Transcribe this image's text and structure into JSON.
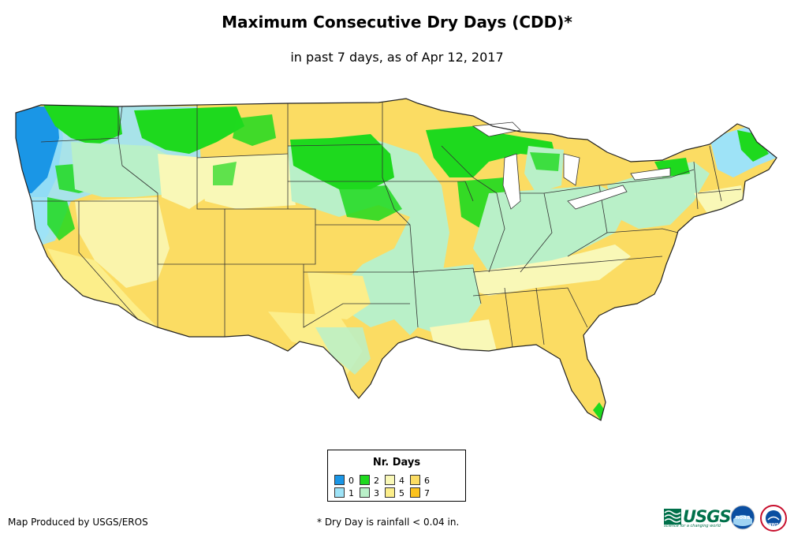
{
  "header": {
    "title": "Maximum Consecutive Dry Days (CDD)*",
    "subtitle": "in past 7 days, as of Apr 12, 2017"
  },
  "legend": {
    "title": "Nr. Days",
    "items": [
      {
        "label": "0",
        "color": "#1a96e6"
      },
      {
        "label": "1",
        "color": "#9ee3f7"
      },
      {
        "label": "2",
        "color": "#1ed91e"
      },
      {
        "label": "3",
        "color": "#b9f0c8"
      },
      {
        "label": "4",
        "color": "#f9f8b7"
      },
      {
        "label": "5",
        "color": "#fcee8a"
      },
      {
        "label": "6",
        "color": "#fbdc63"
      },
      {
        "label": "7",
        "color": "#fbc21e"
      }
    ]
  },
  "footer": {
    "producer": "Map Produced by USGS/EROS",
    "note": "* Dry Day is rainfall < 0.04 in."
  },
  "logos": {
    "usgs_text": "USGS",
    "usgs_tagline": "science for a changing world",
    "noaa_text": "noaa",
    "nws_text": "NWS"
  }
}
